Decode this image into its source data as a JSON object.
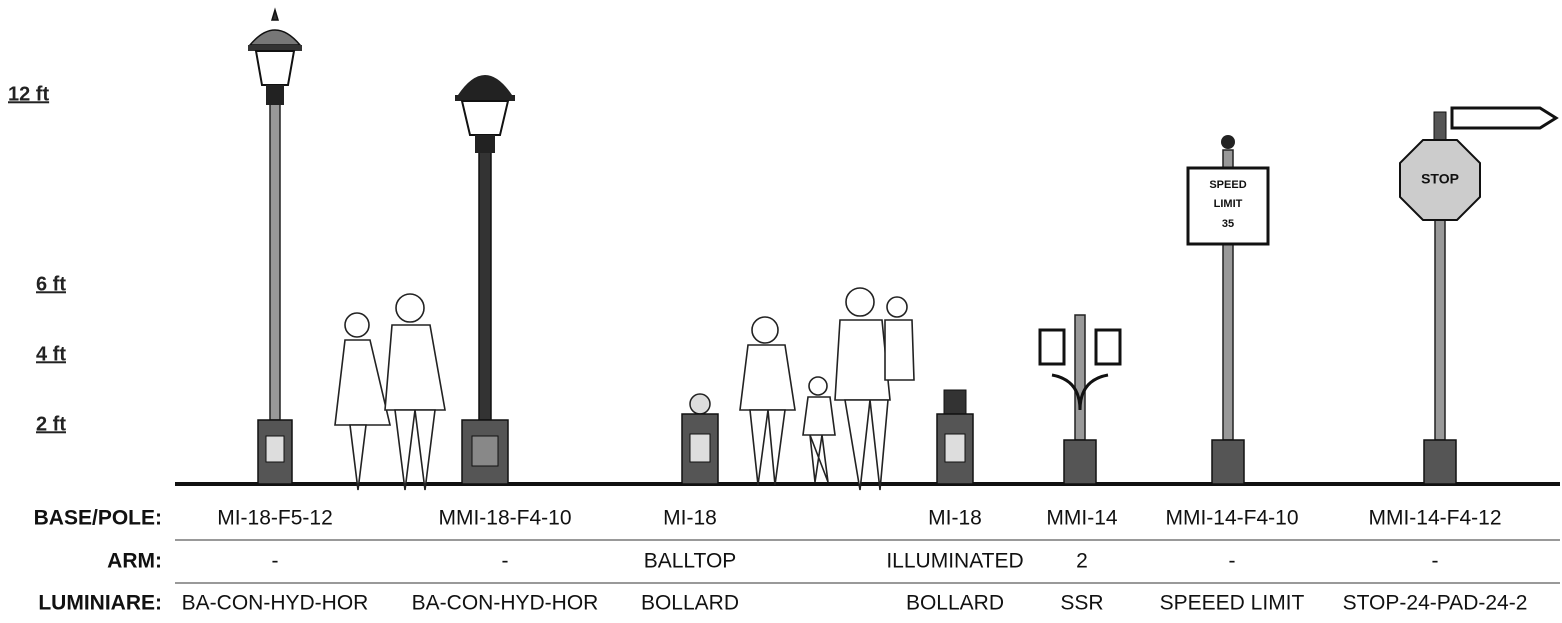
{
  "scale": [
    "12 ft",
    "6 ft",
    "4 ft",
    "2 ft"
  ],
  "table": {
    "rows": [
      {
        "label": "BASE/POLE:",
        "cells": [
          "MI-18-F5-12",
          "MMI-18-F4-10",
          "MI-18",
          "MI-18",
          "MMI-14",
          "MMI-14-F4-10",
          "MMI-14-F4-12"
        ]
      },
      {
        "label": "ARM:",
        "cells": [
          "-",
          "-",
          "BALLTOP",
          "ILLUMINATED",
          "2",
          "-",
          "-"
        ]
      },
      {
        "label": "LUMINIARE:",
        "cells": [
          "BA-CON-HYD-HOR",
          "BA-CON-HYD-HOR",
          "BOLLARD",
          "BOLLARD",
          "SSR",
          "SPEEED LIMIT",
          "STOP-24-PAD-24-2"
        ]
      }
    ]
  },
  "signs": {
    "speed": [
      "SPEED",
      "LIMIT",
      "35"
    ],
    "stop": "STOP"
  }
}
